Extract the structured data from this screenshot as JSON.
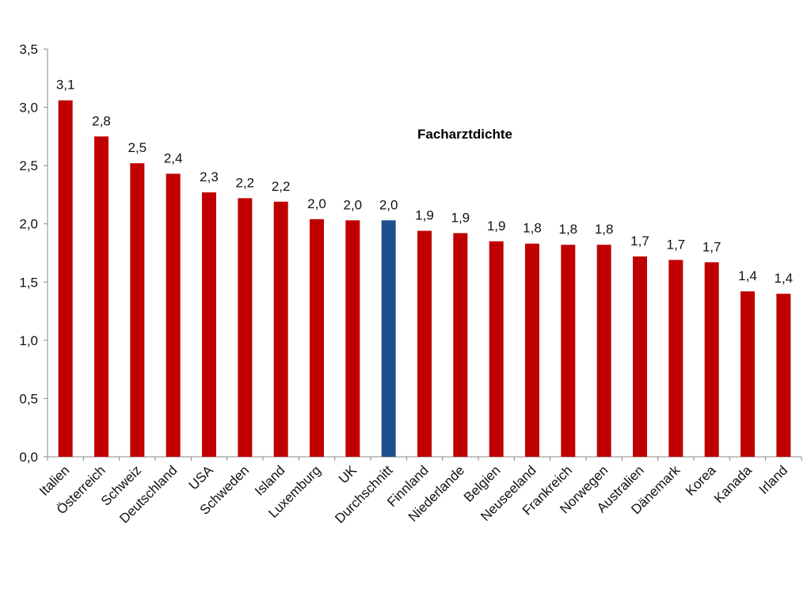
{
  "chart_data": {
    "type": "bar",
    "title": "Facharztdichte",
    "xlabel": "",
    "ylabel": "",
    "ylim": [
      0,
      3.5
    ],
    "yticks": [
      "0,0",
      "0,5",
      "1,0",
      "1,5",
      "2,0",
      "2,5",
      "3,0",
      "3,5"
    ],
    "grid": false,
    "legend": "none",
    "categories": [
      "Italien",
      "Österreich",
      "Schweiz",
      "Deutschland",
      "USA",
      "Schweden",
      "Island",
      "Luxemburg",
      "UK",
      "Durchschnitt",
      "Finnland",
      "Niederlande",
      "Belgien",
      "Neuseeland",
      "Frankreich",
      "Norwegen",
      "Australien",
      "Dänemark",
      "Korea",
      "Kanada",
      "Irland"
    ],
    "values": [
      3.06,
      2.75,
      2.52,
      2.43,
      2.27,
      2.22,
      2.19,
      2.04,
      2.03,
      2.03,
      1.94,
      1.92,
      1.85,
      1.83,
      1.82,
      1.82,
      1.72,
      1.69,
      1.67,
      1.42,
      1.4
    ],
    "data_labels": [
      "3,1",
      "2,8",
      "2,5",
      "2,4",
      "2,3",
      "2,2",
      "2,2",
      "2,0",
      "2,0",
      "2,0",
      "1,9",
      "1,9",
      "1,9",
      "1,8",
      "1,8",
      "1,8",
      "1,7",
      "1,7",
      "1,7",
      "1,4",
      "1,4"
    ],
    "highlight_category": "Durchschnitt",
    "colors": {
      "bar": "#c00000",
      "highlight": "#1f4e8c",
      "axis": "#888888",
      "text": "#111111"
    }
  }
}
